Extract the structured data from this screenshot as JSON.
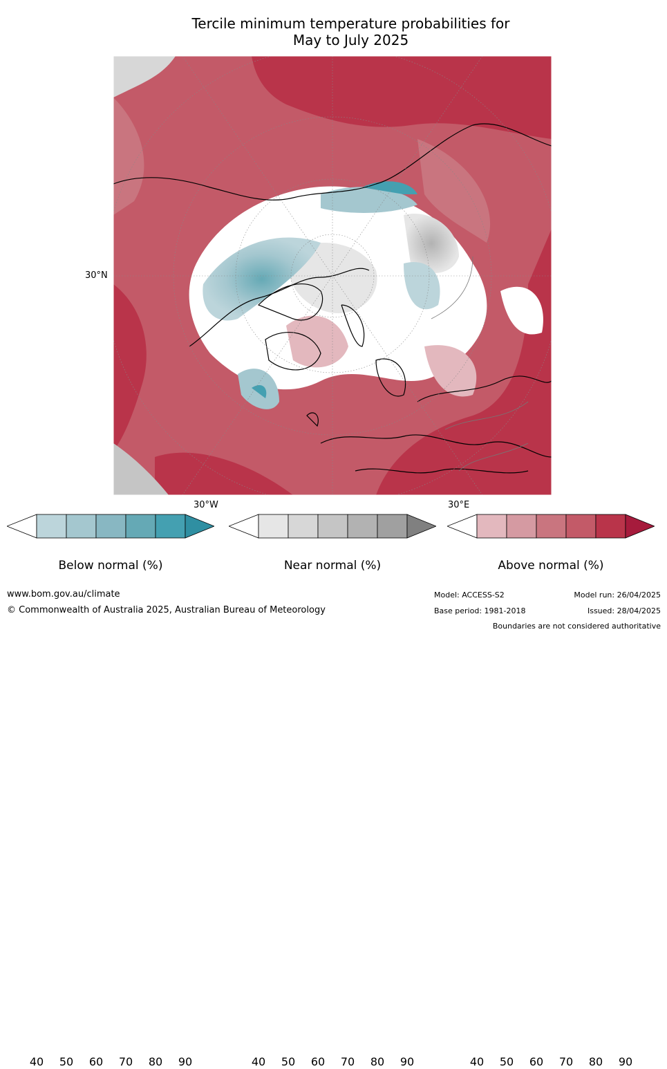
{
  "title_line1": "Tercile minimum temperature probabilities for",
  "title_line2": "May to July 2025",
  "map": {
    "lat_label": "30°N",
    "lon_label_west": "30°W",
    "lon_label_east": "30°E"
  },
  "legends": [
    {
      "title": "Below normal (%)",
      "ticks": [
        "40",
        "50",
        "60",
        "70",
        "80",
        "90"
      ],
      "colors": [
        "#ffffff",
        "#bcd5db",
        "#a4c7cf",
        "#88b7c2",
        "#65a9b5",
        "#44a0b1",
        "#2f8fa2"
      ]
    },
    {
      "title": "Near normal (%)",
      "ticks": [
        "40",
        "50",
        "60",
        "70",
        "80",
        "90"
      ],
      "colors": [
        "#ffffff",
        "#e6e6e6",
        "#d7d7d7",
        "#c5c5c5",
        "#b2b2b2",
        "#a0a0a0",
        "#808080"
      ]
    },
    {
      "title": "Above normal (%)",
      "ticks": [
        "40",
        "50",
        "60",
        "70",
        "80",
        "90"
      ],
      "colors": [
        "#ffffff",
        "#e3b8be",
        "#d59aa2",
        "#c9757f",
        "#c35a68",
        "#b9344a",
        "#a61b3c"
      ]
    }
  ],
  "footer": {
    "website": "www.bom.gov.au/climate",
    "copyright": "© Commonwealth of Australia 2025, Australian Bureau of Meteorology",
    "model": "Model: ACCESS-S2",
    "base_period": "Base period: 1981-2018",
    "model_run": "Model run: 26/04/2025",
    "issued": "Issued: 28/04/2025",
    "disclaimer": "Boundaries are not considered authoritative"
  }
}
